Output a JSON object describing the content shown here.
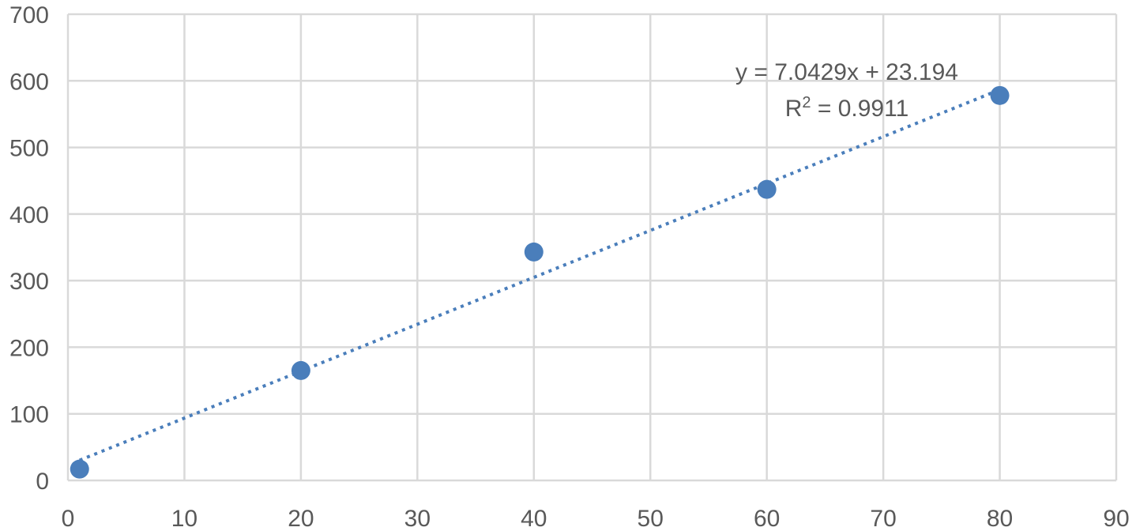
{
  "chart_data": {
    "type": "scatter",
    "title": "",
    "xlabel": "",
    "ylabel": "",
    "xlim": [
      0,
      90
    ],
    "ylim": [
      0,
      700
    ],
    "xticks": [
      0,
      10,
      20,
      30,
      40,
      50,
      60,
      70,
      80,
      90
    ],
    "yticks": [
      0,
      100,
      200,
      300,
      400,
      500,
      600,
      700
    ],
    "grid": true,
    "legend": "none",
    "series": [
      {
        "x": [
          1,
          20,
          40,
          60,
          80
        ],
        "y": [
          17,
          165,
          343,
          437,
          578
        ],
        "color": "#4a7ebb",
        "marker": "circle"
      }
    ],
    "trendline": {
      "type": "linear",
      "slope": 7.0429,
      "intercept": 23.194,
      "x_range": [
        1,
        80
      ],
      "style": "dotted",
      "color": "#4a7ebb"
    },
    "annotations": {
      "equation": "y = 7.0429x + 23.194",
      "r2_prefix": "R",
      "r2_sup": "2",
      "r2_rest": " = 0.9911"
    },
    "colors": {
      "grid": "#d9d9d9",
      "text": "#595959",
      "background": "#ffffff"
    }
  }
}
